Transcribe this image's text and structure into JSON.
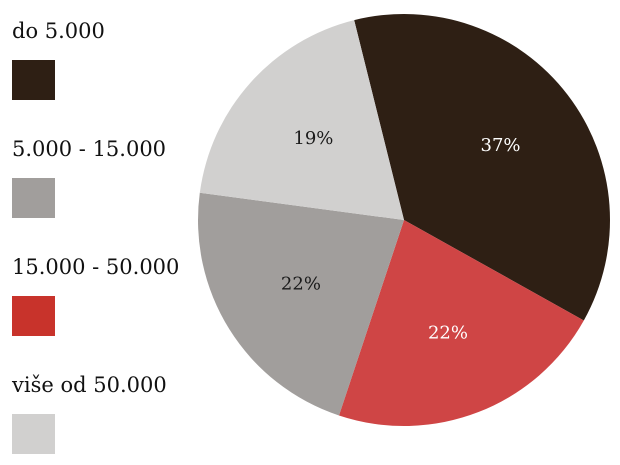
{
  "chart_data": {
    "type": "pie",
    "categories": [
      "do 5.000",
      "5.000 - 15.000",
      "15.000 - 50.000",
      "više od 50.000"
    ],
    "values": [
      37,
      22,
      22,
      19
    ],
    "value_labels": [
      "37%",
      "22%",
      "22%",
      "19%"
    ],
    "slice_colors": [
      "#2e1f14",
      "#a19e9c",
      "#cf4545",
      "#d1d0cf"
    ],
    "swatch_colors": [
      "#2e1f14",
      "#a19e9c",
      "#c8332b",
      "#d1d0cf"
    ],
    "label_colors": [
      "#ffffff",
      "#1a1a1a",
      "#ffffff",
      "#1a1a1a"
    ],
    "slice_order": [
      0,
      2,
      1,
      3
    ],
    "legend_placement": "left",
    "title": ""
  }
}
